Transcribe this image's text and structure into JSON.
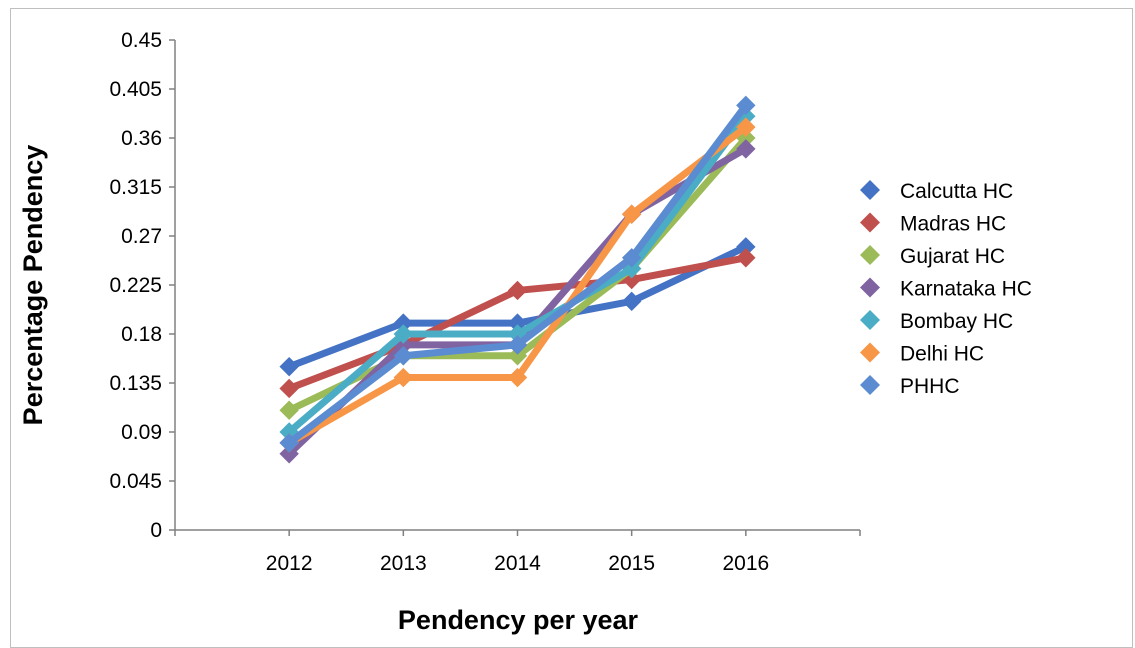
{
  "chart_data": {
    "type": "line",
    "title": "",
    "xlabel": "Pendency per year",
    "ylabel": "Percentage Pendency",
    "categories": [
      "2012",
      "2013",
      "2014",
      "2015",
      "2016"
    ],
    "ylim": [
      0,
      0.45
    ],
    "yticks": [
      "0",
      "0.045",
      "0.09",
      "0.135",
      "0.18",
      "0.225",
      "0.27",
      "0.315",
      "0.36",
      "0.405",
      "0.45"
    ],
    "grid": false,
    "legend_position": "right",
    "series": [
      {
        "name": "Calcutta HC",
        "color": "#4472C4",
        "values": [
          0.15,
          0.19,
          0.19,
          0.21,
          0.26
        ]
      },
      {
        "name": "Madras HC",
        "color": "#C0504D",
        "values": [
          0.13,
          0.17,
          0.22,
          0.23,
          0.25
        ]
      },
      {
        "name": "Gujarat HC",
        "color": "#9BBB59",
        "values": [
          0.11,
          0.16,
          0.16,
          0.24,
          0.36
        ]
      },
      {
        "name": "Karnataka HC",
        "color": "#8064A2",
        "values": [
          0.07,
          0.17,
          0.17,
          0.29,
          0.35
        ]
      },
      {
        "name": "Bombay HC",
        "color": "#4BACC6",
        "values": [
          0.09,
          0.18,
          0.18,
          0.24,
          0.38
        ]
      },
      {
        "name": "Delhi HC",
        "color": "#F79646",
        "values": [
          0.08,
          0.14,
          0.14,
          0.29,
          0.37
        ]
      },
      {
        "name": "PHHC",
        "color": "#5B8BD0",
        "values": [
          0.08,
          0.16,
          0.17,
          0.25,
          0.39
        ]
      }
    ]
  }
}
